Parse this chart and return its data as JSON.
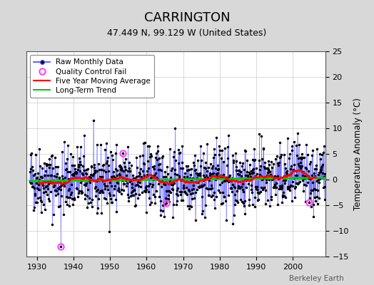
{
  "title": "CARRINGTON",
  "subtitle": "47.449 N, 99.129 W (United States)",
  "ylabel": "Temperature Anomaly (°C)",
  "watermark": "Berkeley Earth",
  "xlim": [
    1927,
    2009
  ],
  "ylim": [
    -15,
    25
  ],
  "yticks": [
    -15,
    -10,
    -5,
    0,
    5,
    10,
    15,
    20,
    25
  ],
  "xticks": [
    1930,
    1940,
    1950,
    1960,
    1970,
    1980,
    1990,
    2000
  ],
  "start_year": 1928,
  "end_year": 2008,
  "bg_color": "#d8d8d8",
  "plot_bg_color": "#ffffff",
  "raw_line_color": "#4444ff",
  "raw_dot_color": "#000000",
  "qc_fail_color": "#ff44ff",
  "moving_avg_color": "#ff0000",
  "trend_color": "#00cc00",
  "seed": 42,
  "trend_slope": 0.008,
  "trend_intercept": -0.3,
  "qc_fail_points": [
    [
      1936.5,
      -13.0
    ],
    [
      1953.5,
      5.2
    ],
    [
      1965.5,
      -4.6
    ],
    [
      2004.5,
      -4.5
    ]
  ]
}
